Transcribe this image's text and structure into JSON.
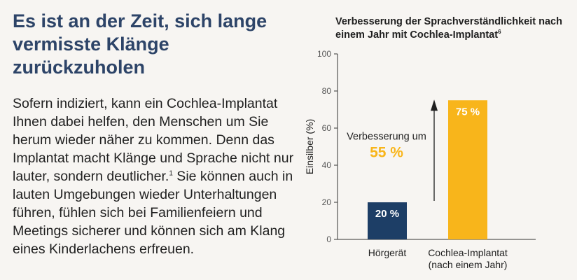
{
  "headline": "Es ist an der Zeit, sich lange vermisste Klänge zurückzuholen",
  "body": {
    "text_before_sup": "Sofern indiziert, kann ein Cochlea-Implantat Ihnen dabei helfen, den Menschen um Sie herum wieder näher zu kommen. Denn das Implantat macht Klänge und Sprache nicht nur lauter, sondern deutlicher.",
    "sup": "1",
    "text_after_sup": " Sie können auch in lauten Umgebungen wieder Unterhaltungen führen, fühlen sich bei Familienfeiern und Meetings sicherer und können sich am Klang eines Kinderlachens erfreuen."
  },
  "chart_data": {
    "type": "bar",
    "title": "Verbesserung der Sprachverständlichkeit nach einem Jahr mit Cochlea-Implantat",
    "title_sup": "6",
    "ylabel": "Einsilber (%)",
    "xlabel": "",
    "ylim": [
      0,
      100
    ],
    "yticks": [
      "0",
      "20",
      "40",
      "60",
      "80",
      "100"
    ],
    "grid": false,
    "categories": [
      [
        "Hörgerät"
      ],
      [
        "Cochlea-Implantat",
        "(nach einem Jahr)"
      ]
    ],
    "values": [
      20,
      75
    ],
    "data_labels": [
      "20 %",
      "75 %"
    ],
    "bar_colors": [
      "#1d3e66",
      "#f8b51b"
    ],
    "annotation": {
      "text": "Verbesserung um",
      "value": "55 %",
      "value_color": "#f8b51b",
      "arrow_from": 20,
      "arrow_to": 75
    }
  }
}
